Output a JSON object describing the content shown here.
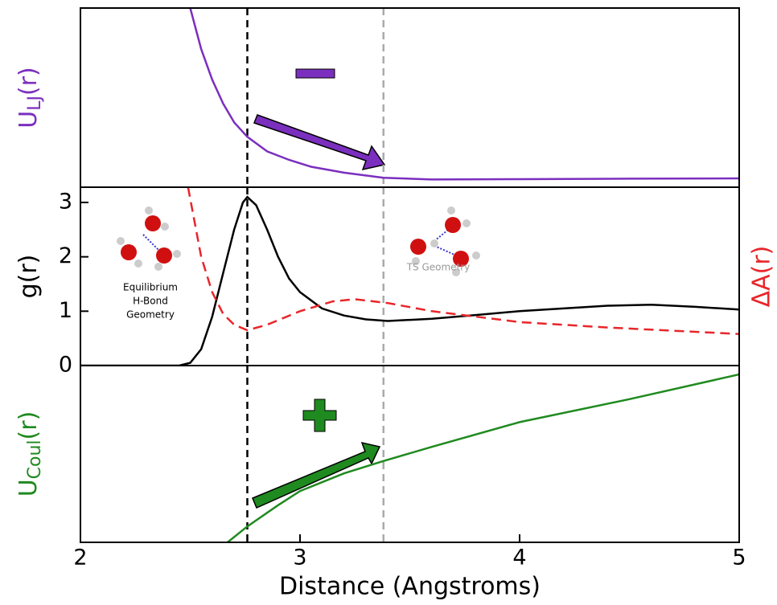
{
  "chart_data": [
    {
      "type": "line",
      "ylabel": {
        "main": "U",
        "sub": "LJ",
        "tail": "(r)"
      },
      "ylabel_color": "#7b2fbe",
      "xlim": [
        2,
        5
      ],
      "ylim": [
        -0.5,
        10
      ],
      "vlines": [
        {
          "x": 2.76,
          "color": "#000000"
        },
        {
          "x": 3.38,
          "color": "#aaaaaa"
        }
      ],
      "series": [
        {
          "color": "#7b2fbe",
          "dash": false,
          "x": [
            2.5,
            2.55,
            2.6,
            2.65,
            2.7,
            2.76,
            2.85,
            2.95,
            3.05,
            3.2,
            3.38,
            3.6,
            4.0,
            4.5,
            5.0
          ],
          "values": [
            10,
            7.6,
            5.8,
            4.4,
            3.3,
            2.45,
            1.6,
            1.1,
            0.7,
            0.35,
            0.05,
            -0.05,
            -0.03,
            0,
            0.02
          ]
        }
      ]
    },
    {
      "type": "line",
      "ylabel": {
        "main": "g(r)"
      },
      "ylabel_color": "#000000",
      "y2label": "ΔA(r)",
      "y2label_color": "#e8262a",
      "xlim": [
        2,
        5
      ],
      "ylim": [
        0,
        3.28
      ],
      "yticks": [
        0,
        1,
        2,
        3
      ],
      "y2lim": [
        0,
        3.28
      ],
      "vlines": [
        {
          "x": 2.76,
          "color": "#000000"
        },
        {
          "x": 3.38,
          "color": "#aaaaaa"
        }
      ],
      "annotations": [
        "Equilibrium",
        "H-Bond",
        "Geometry",
        "TS Geometry"
      ],
      "series": [
        {
          "color": "#000000",
          "dash": false,
          "x": [
            2.0,
            2.45,
            2.5,
            2.55,
            2.6,
            2.65,
            2.7,
            2.74,
            2.76,
            2.8,
            2.85,
            2.9,
            2.95,
            3.0,
            3.1,
            3.2,
            3.3,
            3.4,
            3.6,
            3.8,
            4.0,
            4.2,
            4.4,
            4.6,
            4.8,
            5.0
          ],
          "values": [
            0,
            0,
            0.05,
            0.3,
            0.9,
            1.7,
            2.5,
            3.0,
            3.1,
            2.95,
            2.5,
            2.0,
            1.6,
            1.35,
            1.05,
            0.92,
            0.85,
            0.82,
            0.86,
            0.93,
            1.0,
            1.05,
            1.1,
            1.12,
            1.08,
            1.03
          ]
        },
        {
          "color": "#e8262a",
          "dash": true,
          "axis": "y2",
          "x": [
            2.49,
            2.55,
            2.6,
            2.65,
            2.7,
            2.76,
            2.85,
            3.0,
            3.15,
            3.25,
            3.4,
            3.6,
            3.8,
            4.0,
            4.4,
            4.8,
            5.0
          ],
          "values": [
            3.28,
            2.0,
            1.35,
            0.95,
            0.75,
            0.65,
            0.75,
            1.0,
            1.18,
            1.22,
            1.15,
            1.0,
            0.9,
            0.8,
            0.7,
            0.62,
            0.58
          ]
        }
      ]
    },
    {
      "type": "line",
      "ylabel": {
        "main": "U",
        "sub": "Coul",
        "tail": "(r)"
      },
      "ylabel_color": "#1f8a1f",
      "xlabel": "Distance (Angstroms)",
      "xlim": [
        2,
        5
      ],
      "xticks": [
        2,
        3,
        4,
        5
      ],
      "ylim": [
        0,
        10
      ],
      "vlines": [
        {
          "x": 2.76,
          "color": "#000000"
        },
        {
          "x": 3.38,
          "color": "#aaaaaa"
        }
      ],
      "series": [
        {
          "color": "#1f8a1f",
          "dash": false,
          "x": [
            2.67,
            2.76,
            2.9,
            3.0,
            3.2,
            3.38,
            3.6,
            4.0,
            4.5,
            5.0
          ],
          "values": [
            0,
            0.9,
            2.1,
            2.9,
            3.9,
            4.6,
            5.4,
            6.8,
            8.1,
            9.5
          ]
        }
      ]
    }
  ]
}
